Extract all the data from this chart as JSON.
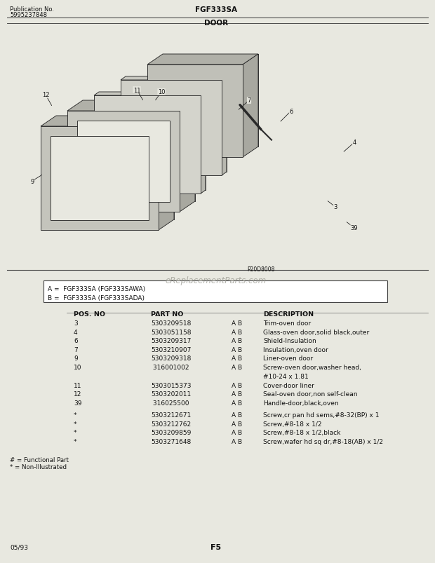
{
  "title": "FGF333SA",
  "subtitle": "DOOR",
  "pub_no": "Publication No.",
  "pub_num": "5995237848",
  "diagram_code": "P20D8008",
  "watermark": "eReplacementParts.com",
  "page_footer_left": "05/93",
  "page_footer_center": "F5",
  "model_box": [
    "A =  FGF333SA (FGF333SAWA)",
    "B =  FGF333SA (FGF333SADA)"
  ],
  "table_headers": [
    "POS. NO",
    "PART NO",
    "",
    "DESCRIPTION"
  ],
  "table_rows": [
    [
      "3",
      "5303209518",
      "A B",
      "Trim-oven door"
    ],
    [
      "4",
      "5303051158",
      "A B",
      "Glass-oven door,solid black,outer"
    ],
    [
      "6",
      "5303209317",
      "A B",
      "Shield-Insulation"
    ],
    [
      "7",
      "5303210907",
      "A B",
      "Insulation,oven door"
    ],
    [
      "9",
      "5303209318",
      "A B",
      "Liner-oven door"
    ],
    [
      "10",
      " 316001002",
      "A B",
      "Screw-oven door,washer head,\n#10-24 x 1.81"
    ],
    [
      "11",
      "5303015373",
      "A B",
      "Cover-door liner"
    ],
    [
      "12",
      "5303202011",
      "A B",
      "Seal-oven door,non self-clean"
    ],
    [
      "39",
      " 316025500",
      "A B",
      "Handle-door,black,oven"
    ],
    [
      "*",
      "5303212671",
      "A B",
      "Screw,cr pan hd sems,#8-32(BP) x 1"
    ],
    [
      "*",
      "5303212762",
      "A B",
      "Screw,#8-18 x 1/2"
    ],
    [
      "*",
      "5303209859",
      "A B",
      "Screw,#8-18 x 1/2,black"
    ],
    [
      "*",
      "5303271648",
      "A B",
      "Screw,wafer hd sq dr,#8-18(AB) x 1/2"
    ]
  ],
  "footnotes": [
    "# = Functional Part",
    "* = Non-Illustrated"
  ],
  "bg_color": "#e8e8e0",
  "text_color": "#111111"
}
